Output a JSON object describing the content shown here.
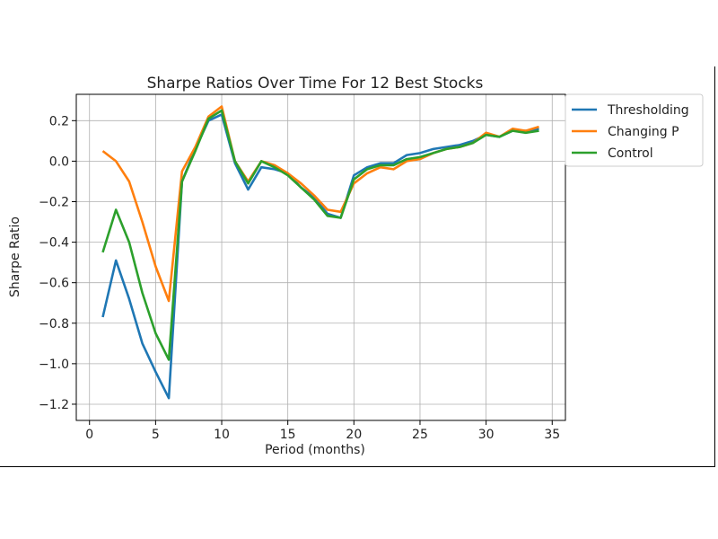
{
  "chart_data": {
    "type": "line",
    "title": "Sharpe Ratios Over Time For 12 Best Stocks",
    "xlabel": "Period (months)",
    "ylabel": "Sharpe Ratio",
    "xlim": [
      -1,
      36
    ],
    "ylim": [
      -1.28,
      0.33
    ],
    "xticks": [
      0,
      5,
      10,
      15,
      20,
      25,
      30,
      35
    ],
    "yticks": [
      0.2,
      0.0,
      -0.2,
      -0.4,
      -0.6,
      -0.8,
      -1.0,
      -1.2
    ],
    "xtick_labels": [
      "0",
      "5",
      "10",
      "15",
      "20",
      "25",
      "30",
      "35"
    ],
    "ytick_labels": [
      "0.2",
      "0.0",
      "−0.2",
      "−0.4",
      "−0.6",
      "−0.8",
      "−1.0",
      "−1.2"
    ],
    "grid": true,
    "legend_position": "outside-top-right",
    "x": [
      1,
      2,
      3,
      4,
      5,
      6,
      7,
      8,
      9,
      10,
      11,
      12,
      13,
      14,
      15,
      16,
      17,
      18,
      19,
      20,
      21,
      22,
      23,
      24,
      25,
      26,
      27,
      28,
      29,
      30,
      31,
      32,
      33,
      34
    ],
    "series": [
      {
        "name": "Thresholding",
        "color": "#1f77b4",
        "values": [
          -0.77,
          -0.49,
          -0.68,
          -0.9,
          -1.04,
          -1.17,
          -0.1,
          0.06,
          0.2,
          0.23,
          -0.01,
          -0.14,
          -0.03,
          -0.04,
          -0.06,
          -0.13,
          -0.18,
          -0.26,
          -0.28,
          -0.07,
          -0.03,
          -0.01,
          -0.01,
          0.03,
          0.04,
          0.06,
          0.07,
          0.08,
          0.1,
          0.13,
          0.12,
          0.15,
          0.15,
          0.16
        ]
      },
      {
        "name": "Changing P",
        "color": "#ff7f0e",
        "values": [
          0.05,
          0.0,
          -0.1,
          -0.3,
          -0.52,
          -0.69,
          -0.05,
          0.07,
          0.22,
          0.27,
          0.0,
          -0.1,
          0.0,
          -0.02,
          -0.06,
          -0.11,
          -0.17,
          -0.24,
          -0.25,
          -0.11,
          -0.06,
          -0.03,
          -0.04,
          0.0,
          0.01,
          0.04,
          0.06,
          0.07,
          0.09,
          0.14,
          0.12,
          0.16,
          0.15,
          0.17
        ]
      },
      {
        "name": "Control",
        "color": "#2ca02c",
        "values": [
          -0.45,
          -0.24,
          -0.4,
          -0.65,
          -0.85,
          -0.98,
          -0.1,
          0.05,
          0.21,
          0.25,
          0.0,
          -0.11,
          0.0,
          -0.03,
          -0.07,
          -0.13,
          -0.19,
          -0.27,
          -0.28,
          -0.09,
          -0.04,
          -0.02,
          -0.02,
          0.01,
          0.02,
          0.04,
          0.06,
          0.07,
          0.09,
          0.13,
          0.12,
          0.15,
          0.14,
          0.15
        ]
      }
    ]
  }
}
